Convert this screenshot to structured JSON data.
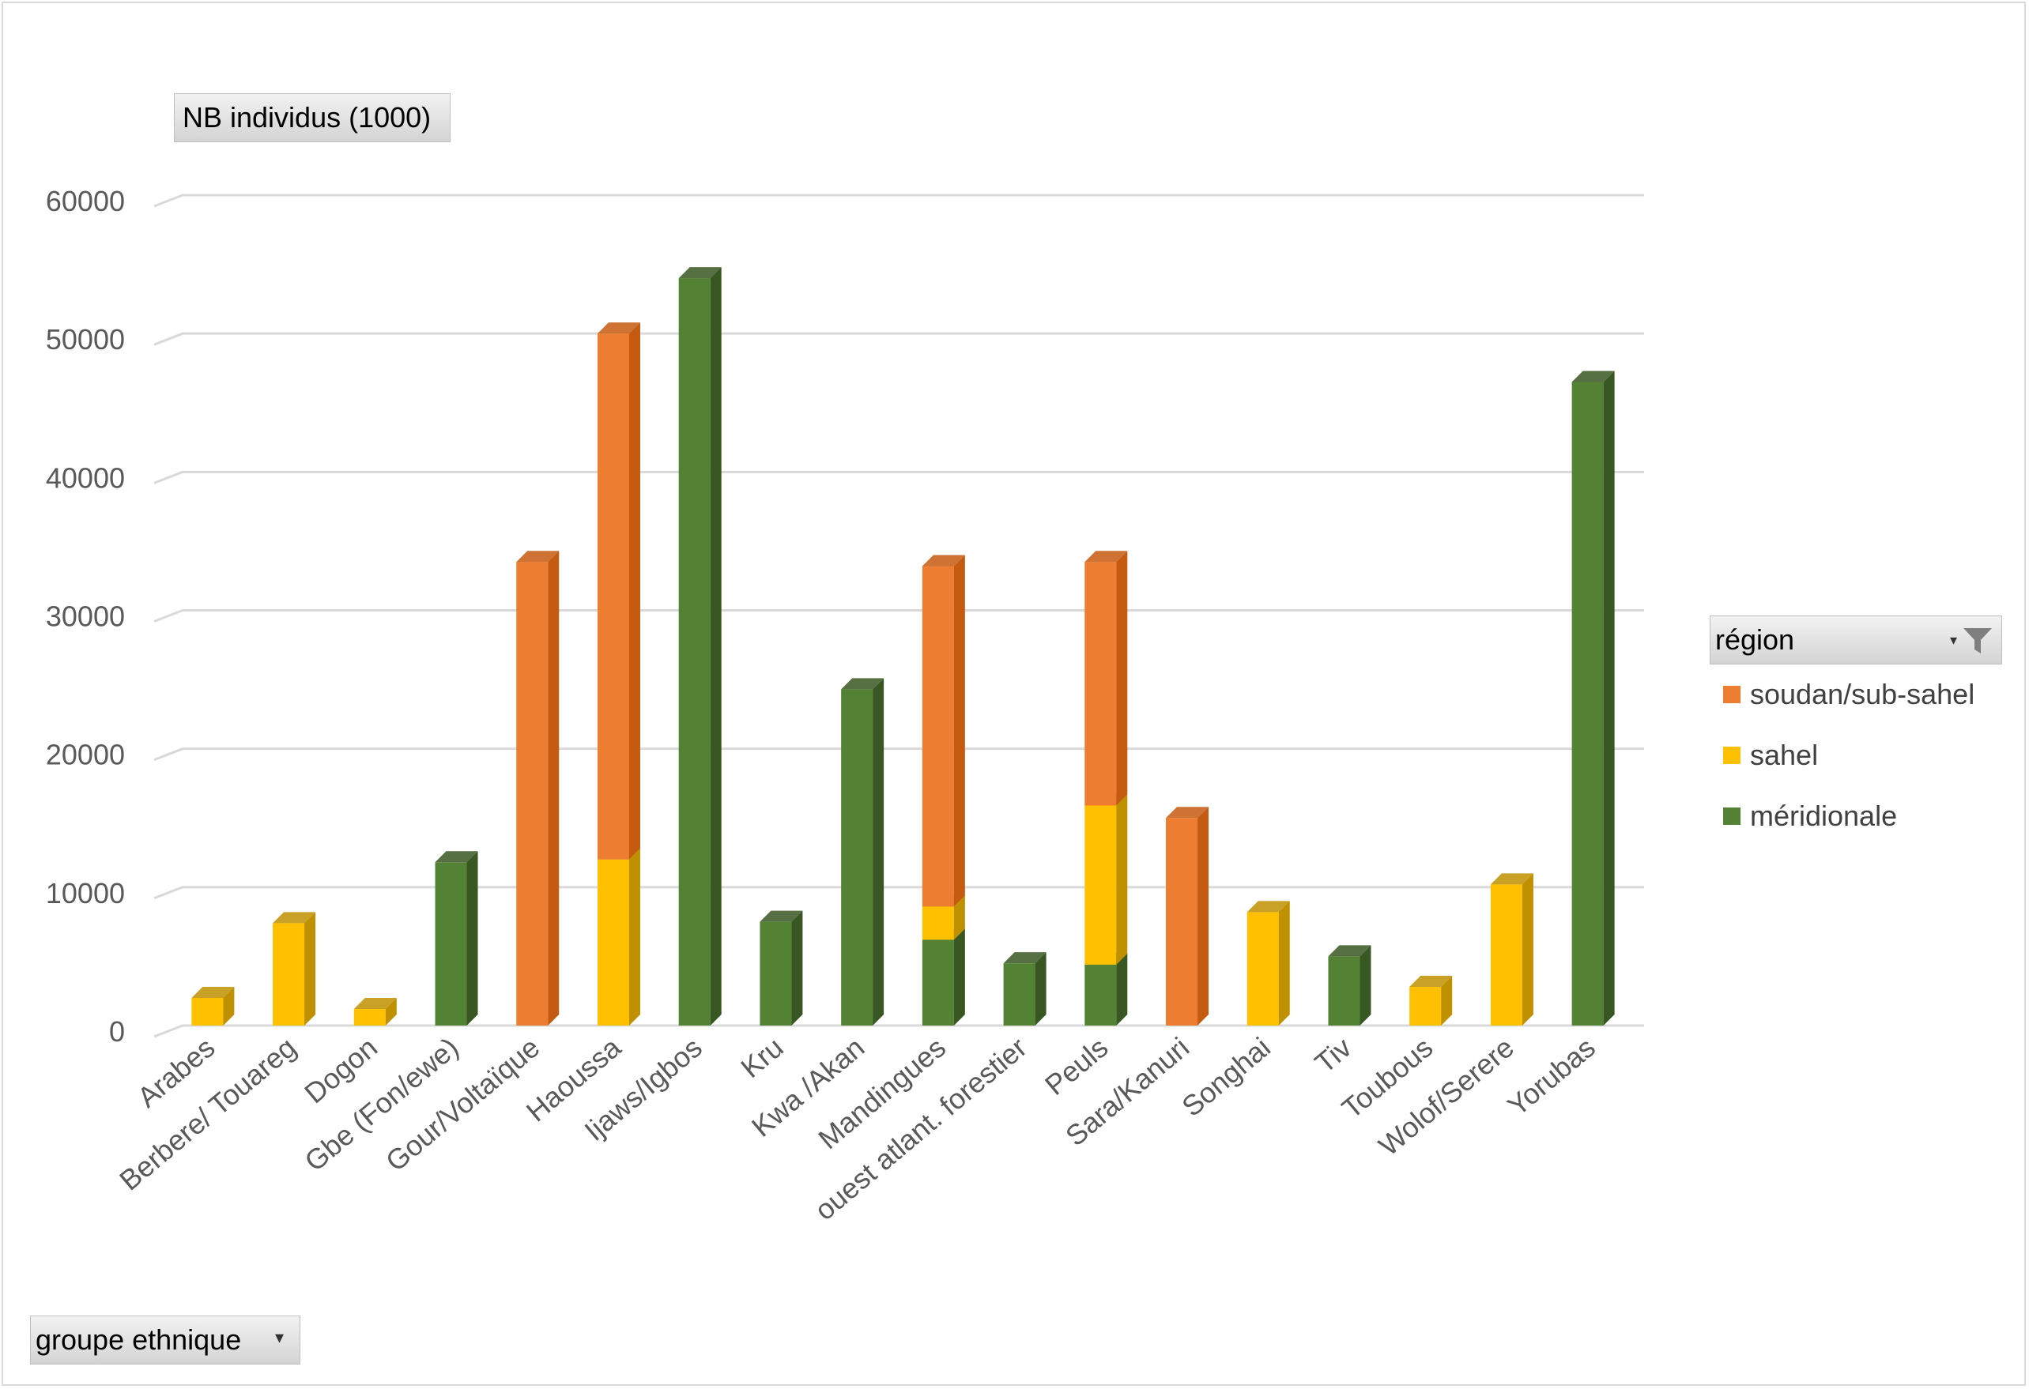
{
  "chart_data": {
    "type": "bar",
    "stacked": true,
    "three_d": true,
    "categories": [
      "Arabes",
      "Berbere/ Touareg",
      "Dogon",
      "Gbe (Fon/ewe)",
      "Gour/Voltaïque",
      "Haoussa",
      "Ijaws/Igbos",
      "Kru",
      "Kwa /Akan",
      "Mandingues",
      "ouest atlant. forestier",
      "Peuls",
      "Sara/Kanuri",
      "Songhai",
      "Tiv",
      "Toubous",
      "Wolof/Serere",
      "Yorubas"
    ],
    "series": [
      {
        "name": "méridionale",
        "color": "#548235",
        "side_color": "#385723",
        "values": [
          0,
          0,
          0,
          11800,
          0,
          0,
          54000,
          7500,
          24300,
          6200,
          4500,
          4400,
          0,
          0,
          5000,
          0,
          0,
          46500
        ]
      },
      {
        "name": "sahel",
        "color": "#ffc000",
        "side_color": "#bf9000",
        "values": [
          2000,
          7400,
          1200,
          0,
          0,
          12000,
          0,
          0,
          0,
          2400,
          0,
          11500,
          0,
          8200,
          0,
          2800,
          10200,
          0
        ]
      },
      {
        "name": "soudan/sub-sahel",
        "color": "#ed7d31",
        "side_color": "#c55a11",
        "values": [
          0,
          0,
          0,
          0,
          33500,
          38000,
          0,
          0,
          0,
          24600,
          0,
          17600,
          15000,
          0,
          0,
          0,
          0,
          0
        ]
      }
    ],
    "yticks": [
      "60000",
      "50000",
      "40000",
      "30000",
      "20000",
      "10000",
      "0"
    ],
    "ylim": [
      0,
      60000
    ],
    "ylabel": "NB individus (1000)",
    "xlabel": "groupe ethnique",
    "legend_title": "région",
    "legend_order": [
      "soudan/sub-sahel",
      "sahel",
      "méridionale"
    ],
    "legend_position": "right",
    "grid": true
  },
  "fields": {
    "y_field": "NB individus (1000)",
    "x_field": "groupe ethnique",
    "legend_field": "région"
  },
  "legend": {
    "items": [
      {
        "label": "soudan/sub-sahel",
        "color": "#ed7d31"
      },
      {
        "label": "sahel",
        "color": "#ffc000"
      },
      {
        "label": "méridionale",
        "color": "#548235"
      }
    ]
  },
  "icons": {
    "legend_filter": "filter-funnel-icon",
    "dropdown": "dropdown-arrow-icon"
  }
}
